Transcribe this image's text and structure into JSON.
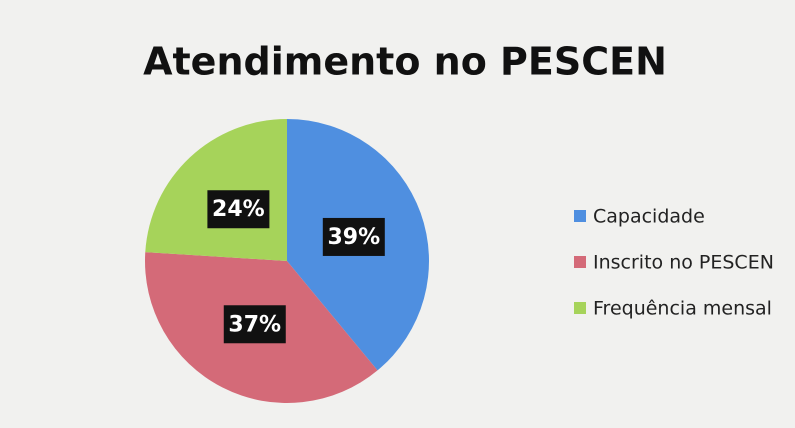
{
  "chart_data": {
    "type": "pie",
    "title": "Atendimento no PESCEN",
    "categories": [
      "Capacidade",
      "Inscrito no PESCEN",
      "Frequência mensal"
    ],
    "values": [
      39,
      37,
      24
    ],
    "value_labels": [
      "39%",
      "37%",
      "24%"
    ],
    "colors": [
      "#4f8fe0",
      "#d46a78",
      "#a6d35a"
    ],
    "legend": "right"
  }
}
